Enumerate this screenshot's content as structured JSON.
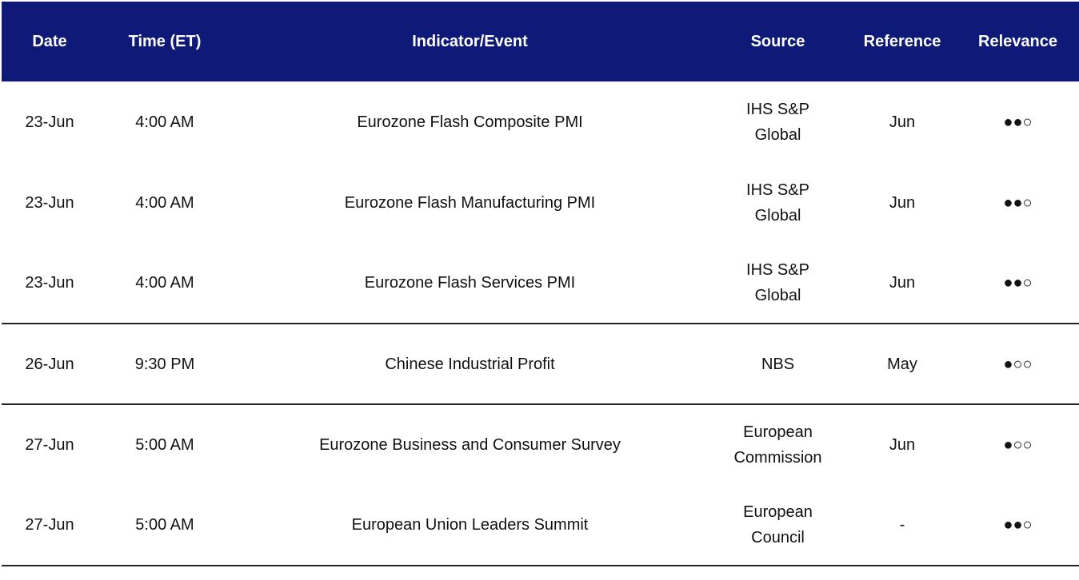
{
  "table": {
    "header": [
      "Date",
      "Time (ET)",
      "Indicator/Event",
      "Source",
      "Reference",
      "Relevance"
    ],
    "groups": [
      [
        [
          "23-Jun",
          "4:00 AM",
          "Eurozone Flash Composite PMI",
          "IHS S&P Global",
          "Jun",
          "●●○"
        ],
        [
          "23-Jun",
          "4:00 AM",
          "Eurozone Flash Manufacturing PMI",
          "IHS S&P Global",
          "Jun",
          "●●○"
        ],
        [
          "23-Jun",
          "4:00 AM",
          "Eurozone Flash Services PMI",
          "IHS S&P Global",
          "Jun",
          "●●○"
        ]
      ],
      [
        [
          "26-Jun",
          "9:30 PM",
          "Chinese Industrial Profit",
          "NBS",
          "May",
          "●○○"
        ]
      ],
      [
        [
          "27-Jun",
          "5:00 AM",
          "Eurozone Business and Consumer Survey",
          "European Commission",
          "Jun",
          "●○○"
        ],
        [
          "27-Jun",
          "5:00 AM",
          "European Union Leaders Summit",
          "European Council",
          "-",
          "●●○"
        ]
      ]
    ]
  }
}
